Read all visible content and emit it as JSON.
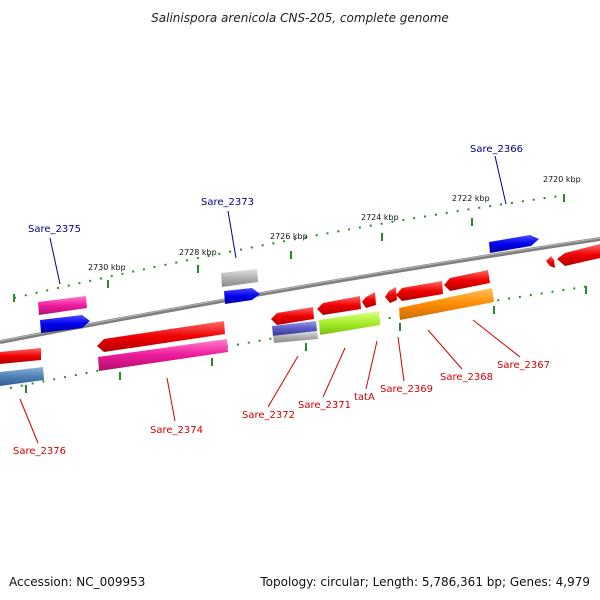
{
  "title": "Salinispora arenicola CNS-205, complete genome",
  "footer": {
    "accession": "Accession: NC_009953",
    "summary": "Topology: circular; Length: 5,786,361 bp; Genes: 4,979"
  },
  "ticks": [
    {
      "label": "2730 kbp"
    },
    {
      "label": "2728 kbp"
    },
    {
      "label": "2726 kbp"
    },
    {
      "label": "2724 kbp"
    },
    {
      "label": "2722 kbp"
    },
    {
      "label": "2720 kbp"
    }
  ],
  "genes": [
    {
      "label": "Sare_2375",
      "color": "#0000ee"
    },
    {
      "label": "Sare_2373",
      "color": "#0000ee"
    },
    {
      "label": "Sare_2366",
      "color": "#0000ee"
    },
    {
      "label": "Sare_2376",
      "color": "#ee0000"
    },
    {
      "label": "Sare_2374",
      "color": "#ee0000"
    },
    {
      "label": "Sare_2372",
      "color": "#ee0000"
    },
    {
      "label": "Sare_2371",
      "color": "#ee0000"
    },
    {
      "label": "tatA",
      "color": "#ee0000"
    },
    {
      "label": "Sare_2369",
      "color": "#ee0000"
    },
    {
      "label": "Sare_2368",
      "color": "#ee0000"
    },
    {
      "label": "Sare_2367",
      "color": "#ee0000"
    }
  ]
}
